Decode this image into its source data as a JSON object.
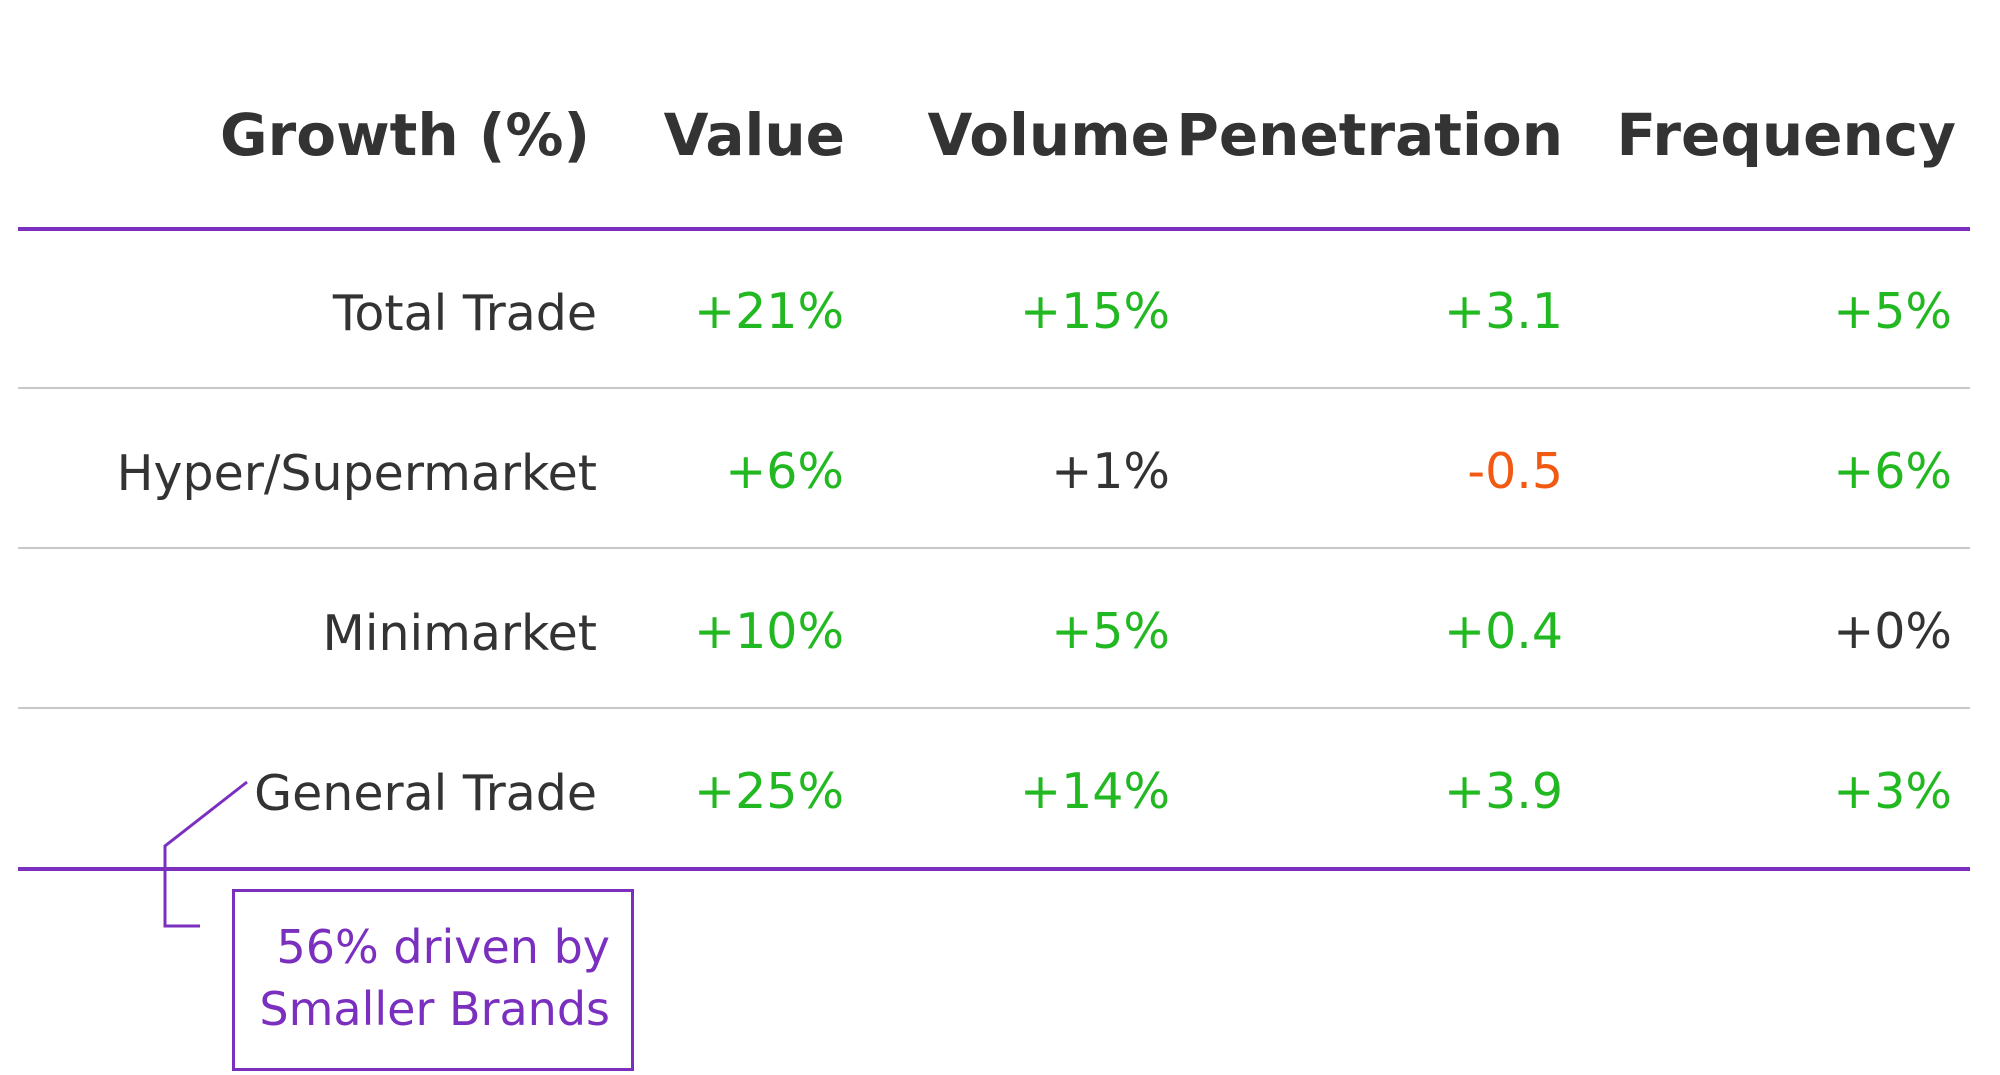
{
  "colors": {
    "accent": "#7b2fbf",
    "positive": "#22b822",
    "negative": "#f25a14",
    "neutral": "#333333",
    "divider": "#c8c8c8"
  },
  "chart_data": {
    "type": "table",
    "columns": [
      "Growth (%)",
      "Value",
      "Volume",
      "Penetration",
      "Frequency"
    ],
    "rows": [
      {
        "label": "Total Trade",
        "values": [
          "+21%",
          "+15%",
          "+3.1",
          "+5%"
        ],
        "status": [
          "positive",
          "positive",
          "positive",
          "positive"
        ]
      },
      {
        "label": "Hyper/Supermarket",
        "values": [
          "+6%",
          "+1%",
          "-0.5",
          "+6%"
        ],
        "status": [
          "positive",
          "neutral",
          "negative",
          "positive"
        ]
      },
      {
        "label": "Minimarket",
        "values": [
          "+10%",
          "+5%",
          "+0.4",
          "+0%"
        ],
        "status": [
          "positive",
          "positive",
          "positive",
          "neutral"
        ]
      },
      {
        "label": "General Trade",
        "values": [
          "+25%",
          "+14%",
          "+3.9",
          "+3%"
        ],
        "status": [
          "positive",
          "positive",
          "positive",
          "positive"
        ]
      }
    ],
    "annotation": {
      "target_row": "General Trade",
      "lines": [
        "56% driven by",
        "Smaller Brands"
      ]
    }
  }
}
